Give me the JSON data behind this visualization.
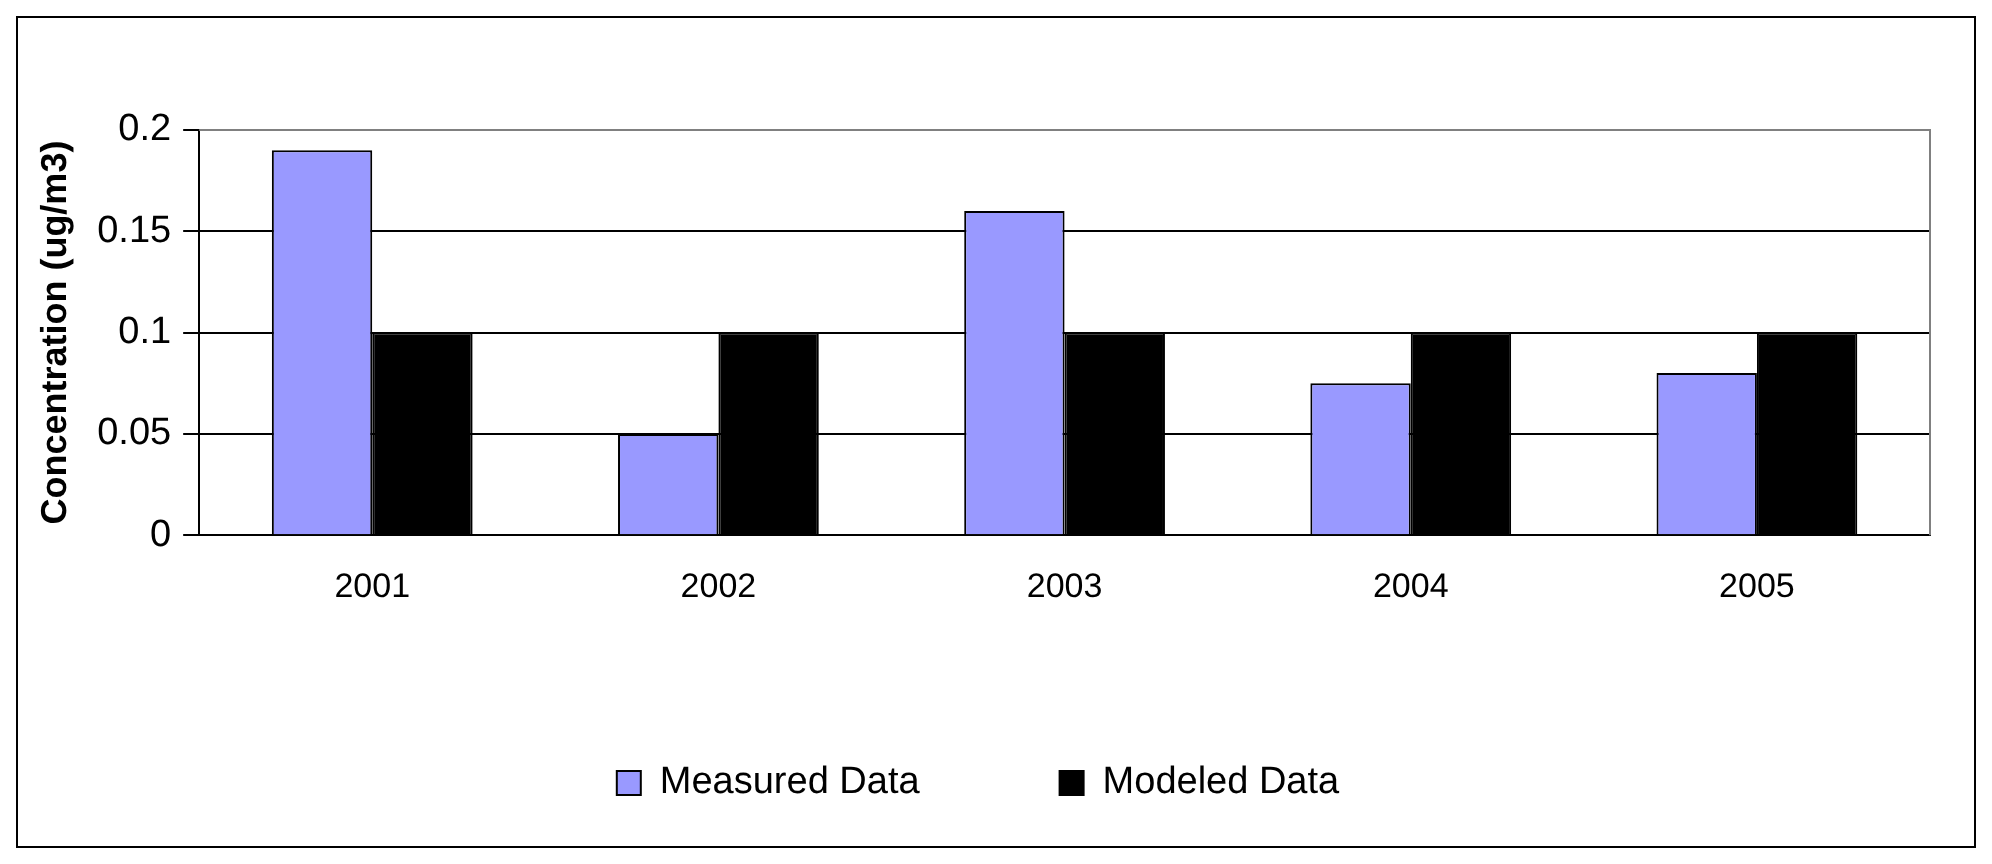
{
  "chart_data": {
    "type": "bar",
    "ylabel": "Concentration (ug/m3)",
    "categories": [
      "2001",
      "2002",
      "2003",
      "2004",
      "2005"
    ],
    "series": [
      {
        "name": "Measured Data",
        "color": "#9999ff",
        "values": [
          0.19,
          0.05,
          0.16,
          0.075,
          0.08
        ]
      },
      {
        "name": "Modeled Data",
        "color": "#000000",
        "values": [
          0.1,
          0.1,
          0.1,
          0.1,
          0.1
        ]
      }
    ],
    "ylim": [
      0,
      0.2
    ],
    "yticks": [
      0,
      0.05,
      0.1,
      0.15,
      0.2
    ],
    "grid": "y",
    "legend": "bottom"
  }
}
